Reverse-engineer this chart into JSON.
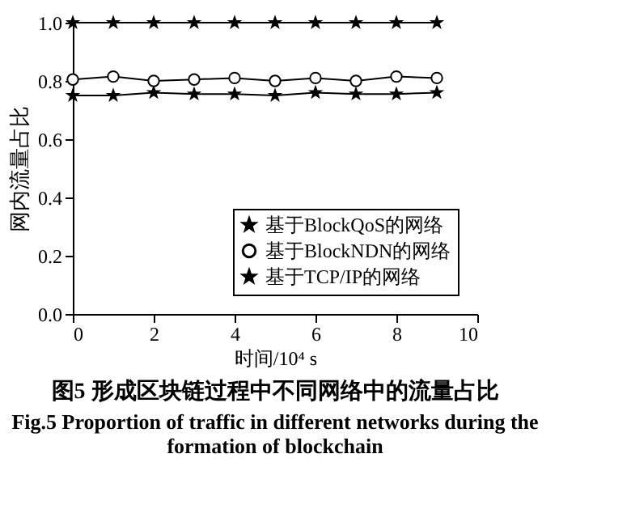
{
  "chart_data": {
    "type": "line",
    "title": "图5  形成区块链过程中不同网络中的流量占比",
    "subtitle": "Fig.5  Proportion of traffic in different networks during the formation of blockchain",
    "xlabel": "时间/10⁴ s",
    "ylabel": "网内流量占比",
    "x": [
      0,
      1,
      2,
      3,
      4,
      5,
      6,
      7,
      8,
      9
    ],
    "series": [
      {
        "name": "基于BlockQoS的网络",
        "color": "#000000",
        "marker": "star",
        "values": [
          0.75,
          0.75,
          0.76,
          0.755,
          0.755,
          0.75,
          0.76,
          0.755,
          0.755,
          0.76
        ]
      },
      {
        "name": "基于BlockNDN的网络",
        "color": "#000000",
        "marker": "circle",
        "values": [
          0.805,
          0.815,
          0.8,
          0.805,
          0.81,
          0.8,
          0.81,
          0.8,
          0.815,
          0.81
        ]
      },
      {
        "name": "基于TCP/IP的网络",
        "color": "#000000",
        "marker": "star",
        "values": [
          1.0,
          1.0,
          1.0,
          1.0,
          1.0,
          1.0,
          1.0,
          1.0,
          1.0,
          1.0
        ]
      }
    ],
    "xlim": [
      0,
      10
    ],
    "xticks": [
      0,
      2,
      4,
      6,
      8,
      10
    ],
    "ylim": [
      0,
      1.0
    ],
    "yticks": [
      {
        "value": 0,
        "label": "0.0"
      },
      {
        "value": 0.2,
        "label": "0.2"
      },
      {
        "value": 0.4,
        "label": "0.4"
      },
      {
        "value": 0.6,
        "label": "0.6"
      },
      {
        "value": 0.8,
        "label": "0.8"
      },
      {
        "value": 1.0,
        "label": "1.0"
      }
    ],
    "grid": false,
    "legend": "bottom right",
    "line_style": "solid"
  }
}
